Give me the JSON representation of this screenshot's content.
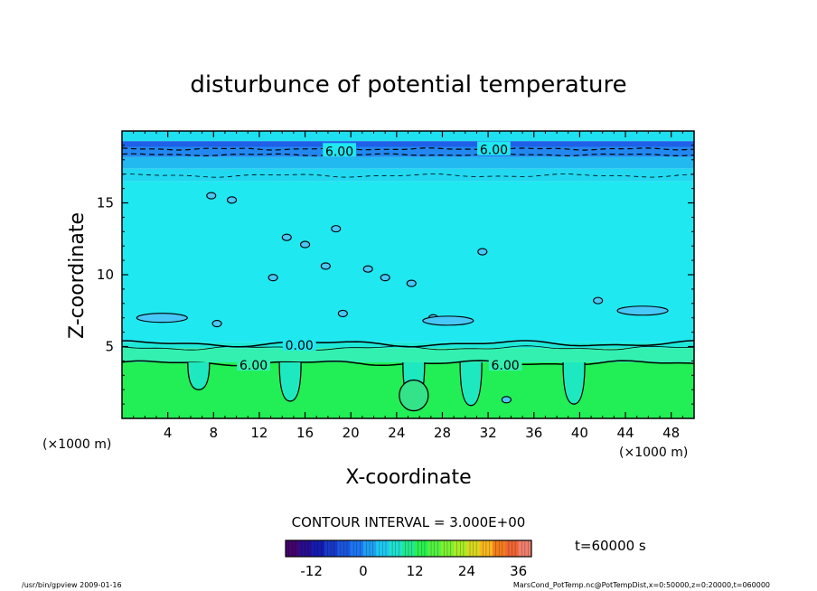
{
  "chart_data": {
    "type": "heatmap",
    "title": "disturbunce of potential temperature",
    "xlabel": "X-coordinate",
    "ylabel": "Z-coordinate",
    "x_unit_left": "(×1000 m)",
    "x_unit_right": "(×1000 m)",
    "xlim": [
      0,
      50
    ],
    "ylim": [
      0,
      20
    ],
    "x_ticks": [
      4,
      8,
      12,
      16,
      20,
      24,
      28,
      32,
      36,
      40,
      44,
      48
    ],
    "y_ticks": [
      5,
      10,
      15
    ],
    "contour_interval_text": "CONTOUR INTERVAL = 3.000E+00",
    "time_label": "t=60000 s",
    "colorbar": {
      "min": -18,
      "max": 39,
      "step": 3,
      "ticks": [
        -12,
        0,
        12,
        24,
        36
      ]
    },
    "contour_labels": [
      {
        "text": "6.00",
        "x": 19.0,
        "z": 18.6
      },
      {
        "text": "6.00",
        "x": 32.5,
        "z": 18.7
      },
      {
        "text": "0.00",
        "x": 15.5,
        "z": 5.1
      },
      {
        "text": "6.00",
        "x": 11.5,
        "z": 3.7
      },
      {
        "text": "6.00",
        "x": 33.5,
        "z": 3.7
      }
    ],
    "bands": [
      {
        "z0": 0.0,
        "z1": 3.9,
        "value": 9,
        "color": "#22ee55"
      },
      {
        "z0": 3.9,
        "z1": 4.9,
        "value": 6,
        "color": "#33f0b0"
      },
      {
        "z0": 4.9,
        "z1": 5.3,
        "value": 3,
        "color": "#1ee8d8"
      },
      {
        "z0": 5.3,
        "z1": 16.5,
        "value": 0,
        "color": "#1fe8f0"
      },
      {
        "z0": 16.5,
        "z1": 17.4,
        "value": -3,
        "color": "#22d8f0"
      },
      {
        "z0": 17.4,
        "z1": 18.2,
        "value": -6,
        "color": "#22b8f0"
      },
      {
        "z0": 18.2,
        "z1": 18.9,
        "value": -9,
        "color": "#2288f0"
      },
      {
        "z0": 18.9,
        "z1": 19.3,
        "value": -12,
        "color": "#1e60e8"
      },
      {
        "z0": 19.3,
        "z1": 20.0,
        "value": -3,
        "color": "#1fe0f0"
      }
    ],
    "colors": {
      "low_wave_green": "#22ee55",
      "mid_cyan": "#1fe8f0",
      "light_blue": "#5fd0f8",
      "deep_blue": "#1e60e8"
    }
  },
  "footer": {
    "left": "/usr/bin/gpview  2009-01-16",
    "right": "MarsCond_PotTemp.nc@PotTempDist,x=0:50000,z=0:20000,t=060000"
  }
}
